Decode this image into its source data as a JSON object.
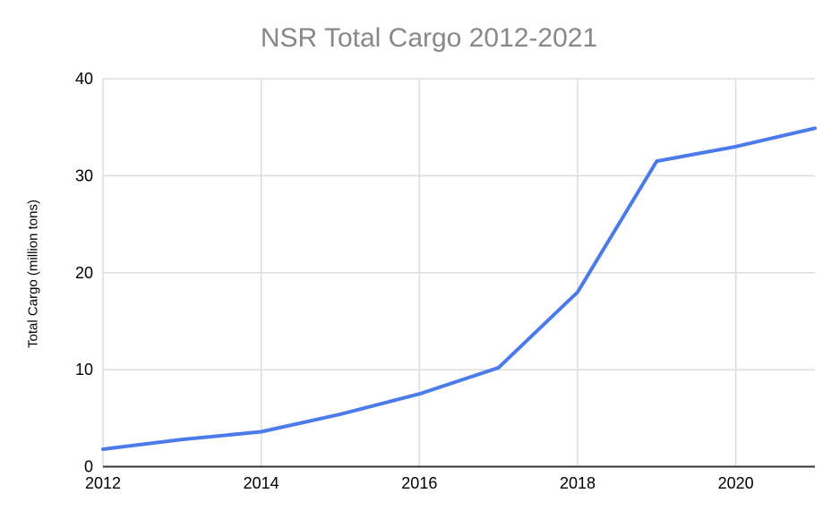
{
  "chart_data": {
    "type": "line",
    "title": "NSR Total Cargo 2012-2021",
    "xlabel": "",
    "ylabel": "Total Cargo (million tons)",
    "x": [
      2012,
      2013,
      2014,
      2015,
      2016,
      2017,
      2018,
      2019,
      2020,
      2021
    ],
    "series": [
      {
        "name": "Total Cargo (million tons)",
        "values": [
          1.8,
          2.8,
          3.6,
          5.4,
          7.5,
          10.2,
          18.0,
          31.5,
          33.0,
          34.9
        ]
      }
    ],
    "xlim": [
      2012,
      2021
    ],
    "ylim": [
      0,
      40
    ],
    "xticks": [
      2012,
      2014,
      2016,
      2018,
      2020
    ],
    "yticks": [
      0,
      10,
      20,
      30,
      40
    ],
    "grid": true,
    "legend_position": "none",
    "colors": {
      "line": "#4b7bea",
      "title": "#888888",
      "axis_line": "#333333",
      "gridline": "#dddddd",
      "tick_label": "#000000"
    }
  }
}
